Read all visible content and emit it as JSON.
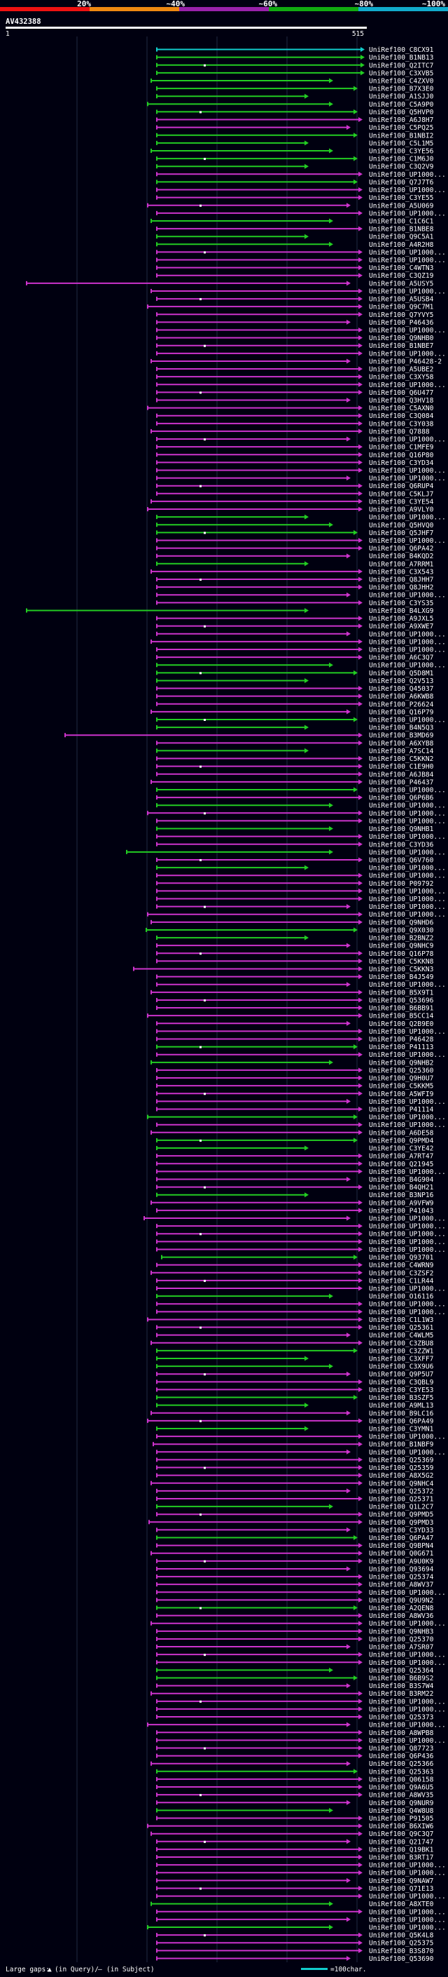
{
  "chart_data": {
    "type": "alignment_overview",
    "title": "AV432388",
    "query": {
      "name": "AV432388",
      "start_label": "1",
      "end_label": "515",
      "length": 515
    },
    "identity_scale": {
      "labels": [
        "20%",
        "~40%",
        "~60%",
        "~80%",
        "~100%"
      ],
      "colors": [
        "#ee1111",
        "#ee8811",
        "#9922aa",
        "#11aa11",
        "#11aacc"
      ]
    },
    "legend": {
      "large_gaps_prefix": "Large gaps:",
      "query_gap_text": "(in Query)/",
      "subject_gap_text": "(in Subject)",
      "scale_text": "=100char."
    },
    "subjects": [
      "UniRef100_C8CX91",
      "UniRef100_B1NB13",
      "UniRef100_Q2ITC7",
      "UniRef100_C3XVB5",
      "UniRef100_C4ZXV0",
      "UniRef100_B7X3E0",
      "UniRef100_A1SJJ0",
      "UniRef100_C5A9P0",
      "UniRef100_Q5HVP0",
      "UniRef100_A6J8H7",
      "UniRef100_C5PQ25",
      "UniRef100_B1NBI2",
      "UniRef100_C5L1M5",
      "UniRef100_C3YE56",
      "UniRef100_C1M6J0",
      "UniRef100_C3Q2V9",
      "UniRef100_UP1000...",
      "UniRef100_Q7J7T6",
      "UniRef100_UP1000...",
      "UniRef100_C3YE55",
      "UniRef100_A5U069",
      "UniRef100_UP1000...",
      "UniRef100_C1C6C1",
      "UniRef100_B1NBE8",
      "UniRef100_Q9C5A1",
      "UniRef100_A4R2H8",
      "UniRef100_UP1000...",
      "UniRef100_UP1000...",
      "UniRef100_C4WTN3",
      "UniRef100_C3QZ19",
      "UniRef100_A5USY5",
      "UniRef100_UP1000...",
      "UniRef100_A5USB4",
      "UniRef100_Q9C7M1",
      "UniRef100_Q7YVY5",
      "UniRef100_P46436",
      "UniRef100_UP1000...",
      "UniRef100_Q9NHB0",
      "UniRef100_B1NBE7",
      "UniRef100_UP1000...",
      "UniRef100_P46428-2",
      "UniRef100_A5UBE2",
      "UniRef100_C3XY58",
      "UniRef100_UP1000...",
      "UniRef100_Q6U477",
      "UniRef100_Q3HV18",
      "UniRef100_C5AXN0",
      "UniRef100_C3Q084",
      "UniRef100_C3Y038",
      "UniRef100_Q7888",
      "UniRef100_UP1000...",
      "UniRef100_C1MFE9",
      "UniRef100_Q16P80",
      "UniRef100_C3YD34",
      "UniRef100_UP1000...",
      "UniRef100_UP1000...",
      "UniRef100_Q6RUP4",
      "UniRef100_C5KLJ7",
      "UniRef100_C3YE54",
      "UniRef100_A9VLY0",
      "UniRef100_UP1000...",
      "UniRef100_Q5HVQ0",
      "UniRef100_Q5JHF7",
      "UniRef100_UP1000...",
      "UniRef100_Q6PA42",
      "UniRef100_B4KQD2",
      "UniRef100_A7RRM1",
      "UniRef100_C3X543",
      "UniRef100_Q8JHH7",
      "UniRef100_Q8JHH2",
      "UniRef100_UP1000...",
      "UniRef100_C3YS35",
      "UniRef100_B4LXG9",
      "UniRef100_A9JXL5",
      "UniRef100_A9XWE7",
      "UniRef100_UP1000...",
      "UniRef100_UP1000...",
      "UniRef100_UP1000...",
      "UniRef100_A6C3Q7",
      "UniRef100_UP1000...",
      "UniRef100_Q5D8M1",
      "UniRef100_Q2V513",
      "UniRef100_Q45037",
      "UniRef100_A6KWB8",
      "UniRef100_P26624",
      "UniRef100_Q16P79",
      "UniRef100_UP1000...",
      "UniRef100_B4N5Q3",
      "UniRef100_B3MD69",
      "UniRef100_A6XYB8",
      "UniRef100_A7SC14",
      "UniRef100_C5KKN2",
      "UniRef100_C1E9H0",
      "UniRef100_A6JB84",
      "UniRef100_P46437",
      "UniRef100_UP1000...",
      "UniRef100_Q6P6B6",
      "UniRef100_UP1000...",
      "UniRef100_UP1000...",
      "UniRef100_UP1000...",
      "UniRef100_Q9NHB1",
      "UniRef100_UP1000...",
      "UniRef100_C3YD36",
      "UniRef100_UP1000...",
      "UniRef100_Q6V760",
      "UniRef100_UP1000...",
      "UniRef100_UP1000...",
      "UniRef100_P09792",
      "UniRef100_UP1000...",
      "UniRef100_UP1000...",
      "UniRef100_UP1000...",
      "UniRef100_UP1000...",
      "UniRef100_Q9NHD6",
      "UniRef100_Q9X030",
      "UniRef100_B2BNZ2",
      "UniRef100_Q9NHC9",
      "UniRef100_Q16P78",
      "UniRef100_C5KKN8",
      "UniRef100_C5KKN3",
      "UniRef100_B4J549",
      "UniRef100_UP1000...",
      "UniRef100_B5X9T1",
      "UniRef100_Q53696",
      "UniRef100_B6BB91",
      "UniRef100_B5CC14",
      "UniRef100_Q2B9E0",
      "UniRef100_UP1000...",
      "UniRef100_P46428",
      "UniRef100_P41113",
      "UniRef100_UP1000...",
      "UniRef100_Q9NHB2",
      "UniRef100_Q25360",
      "UniRef100_Q9H0U7",
      "UniRef100_C5KKM5",
      "UniRef100_A5WFI9",
      "UniRef100_UP1000...",
      "UniRef100_P41114",
      "UniRef100_UP1000...",
      "UniRef100_UP1000...",
      "UniRef100_A6DE58",
      "UniRef100_Q9PMD4",
      "UniRef100_C3YE42",
      "UniRef100_A7RT47",
      "UniRef100_Q21945",
      "UniRef100_UP1000...",
      "UniRef100_B4G904",
      "UniRef100_B4QH21",
      "UniRef100_B3NP16",
      "UniRef100_A9VFW9",
      "UniRef100_P41043",
      "UniRef100_UP1000...",
      "UniRef100_UP1000...",
      "UniRef100_UP1000...",
      "UniRef100_UP1000...",
      "UniRef100_UP1000...",
      "UniRef100_Q93701",
      "UniRef100_C4WRN9",
      "UniRef100_C3ZSF2",
      "UniRef100_C1LR44",
      "UniRef100_UP1000...",
      "UniRef100_O16116",
      "UniRef100_UP1000...",
      "UniRef100_UP1000...",
      "UniRef100_C1L1W3",
      "UniRef100_Q25361",
      "UniRef100_C4WLM5",
      "UniRef100_C3ZBU8",
      "UniRef100_C3ZZW1",
      "UniRef100_C3XFF7",
      "UniRef100_C3X9U6",
      "UniRef100_Q9P5U7",
      "UniRef100_C3QBL9",
      "UniRef100_C3YE53",
      "UniRef100_B3SZF5",
      "UniRef100_A9ML13",
      "UniRef100_B9LC16",
      "UniRef100_Q6PA49",
      "UniRef100_C3YMN1",
      "UniRef100_UP1000...",
      "UniRef100_B1NBF9",
      "UniRef100_UP1000...",
      "UniRef100_Q25369",
      "UniRef100_Q25359",
      "UniRef100_A8X5G2",
      "UniRef100_Q9NHC4",
      "UniRef100_Q25372",
      "UniRef100_Q25371",
      "UniRef100_Q1L2C7",
      "UniRef100_Q9PMD5",
      "UniRef100_Q9PMD3",
      "UniRef100_C3YD33",
      "UniRef100_Q6PA47",
      "UniRef100_Q9BPN4",
      "UniRef100_Q0G671",
      "UniRef100_A9U0K9",
      "UniRef100_Q93694",
      "UniRef100_Q25374",
      "UniRef100_A8WV37",
      "UniRef100_UP1000...",
      "UniRef100_Q9U9N2",
      "UniRef100_A2QEN8",
      "UniRef100_A8WV36",
      "UniRef100_UP1000...",
      "UniRef100_Q9NHB3",
      "UniRef100_Q25370",
      "UniRef100_A7SR07",
      "UniRef100_UP1000...",
      "UniRef100_UP1000...",
      "UniRef100_Q25364",
      "UniRef100_B6B9S2",
      "UniRef100_B3S7W4",
      "UniRef100_B3RM22",
      "UniRef100_UP1000...",
      "UniRef100_UP1000...",
      "UniRef100_Q25373",
      "UniRef100_UP1000...",
      "UniRef100_A8WPB8",
      "UniRef100_UP1000...",
      "UniRef100_Q87723",
      "UniRef100_Q6P436",
      "UniRef100_Q25366",
      "UniRef100_Q25363",
      "UniRef100_Q06158",
      "UniRef100_Q9A6U5",
      "UniRef100_A8WV35",
      "UniRef100_Q9NUR9",
      "UniRef100_Q4W8U8",
      "UniRef100_P91505",
      "UniRef100_B6XIW6",
      "UniRef100_Q9C3Q7",
      "UniRef100_Q21747",
      "UniRef100_Q19BK1",
      "UniRef100_B3RT17",
      "UniRef100_UP1000...",
      "UniRef100_UP1000...",
      "UniRef100_Q9NAW7",
      "UniRef100_Q71E13",
      "UniRef100_UP1000...",
      "UniRef100_A8XTE0",
      "UniRef100_UP1000...",
      "UniRef100_UP1000...",
      "UniRef100_UP1000...",
      "UniRef100_Q5K4L8",
      "UniRef100_Q25375",
      "UniRef100_B3S870",
      "UniRef100_Q53690"
    ]
  }
}
